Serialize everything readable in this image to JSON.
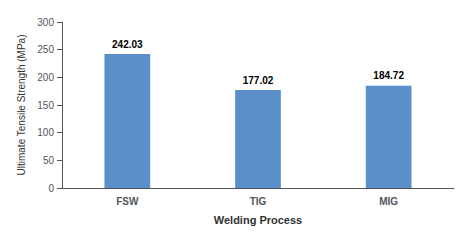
{
  "chart_data": {
    "type": "bar",
    "categories": [
      "FSW",
      "TIG",
      "MIG"
    ],
    "values": [
      242.03,
      177.02,
      184.72
    ],
    "color": "#5b8fc9",
    "xlabel": "Welding Process",
    "ylabel": "Ultimate Tensile Strength (MPa)",
    "ylim": [
      0,
      300
    ],
    "yticks": [
      0,
      50,
      100,
      150,
      200,
      250,
      300
    ],
    "grid": false,
    "data_labels": true
  }
}
